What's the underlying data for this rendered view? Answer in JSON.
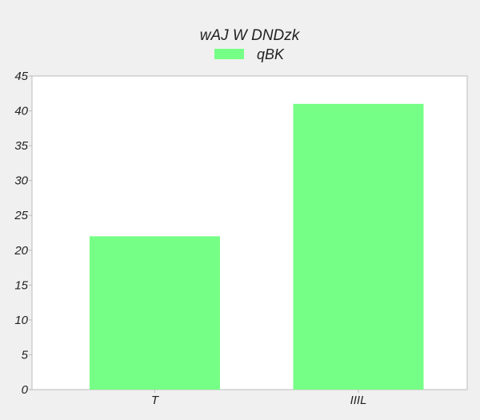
{
  "chart_data": {
    "type": "bar",
    "title": "wAJ  W DNDzk",
    "categories": [
      "T",
      "IIIL"
    ],
    "series": [
      {
        "name": "qBK",
        "values": [
          22,
          41
        ],
        "color": "#76ff86"
      }
    ],
    "ylim": [
      0,
      45
    ],
    "yticks": [
      0,
      5,
      10,
      15,
      20,
      25,
      30,
      35,
      40,
      45
    ],
    "grid": false,
    "legend_position": "top-center",
    "xlabel": "",
    "ylabel": ""
  }
}
